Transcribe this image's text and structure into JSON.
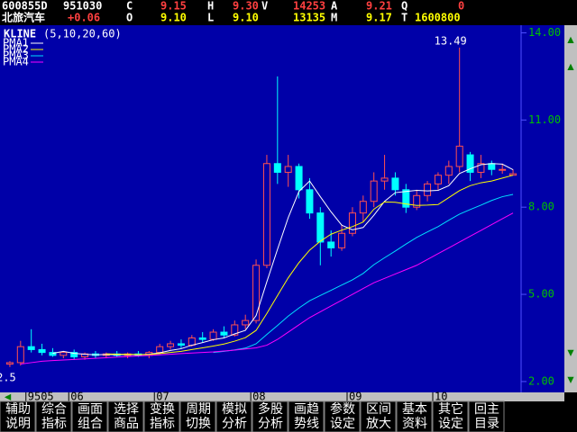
{
  "header": {
    "row1": [
      "600855D",
      "951030",
      "C",
      "9.15",
      "H",
      "9.30",
      "V",
      "14253",
      "A",
      "9.21",
      "Q",
      "0"
    ],
    "row2": [
      "北旅汽车",
      "+0.06",
      "O",
      "9.10",
      "L",
      "9.10",
      "13135",
      "M",
      "9.17",
      "T",
      "1600800"
    ]
  },
  "chart_data": {
    "type": "candlestick",
    "title": "KLINE",
    "subtitle": "(5,10,20,60)",
    "up_color": "#ff5050",
    "down_color": "#00ffff",
    "categories": [
      null,
      null,
      "9505",
      null,
      null,
      null,
      "06",
      null,
      null,
      null,
      null,
      null,
      null,
      null,
      "07",
      null,
      null,
      null,
      null,
      null,
      null,
      null,
      null,
      "08",
      null,
      null,
      null,
      null,
      null,
      null,
      null,
      null,
      "09",
      null,
      null,
      null,
      null,
      null,
      null,
      null,
      "10",
      null,
      null,
      null,
      null,
      null,
      null,
      null
    ],
    "open": [
      2.6,
      2.65,
      3.2,
      3.1,
      3.0,
      2.9,
      3.0,
      2.85,
      2.95,
      2.9,
      2.95,
      2.9,
      2.95,
      2.9,
      3.0,
      3.2,
      3.3,
      3.25,
      3.5,
      3.45,
      3.7,
      3.6,
      3.95,
      4.1,
      6.0,
      9.5,
      9.2,
      9.4,
      8.6,
      7.8,
      6.8,
      6.6,
      7.1,
      7.8,
      8.2,
      8.9,
      9.0,
      8.6,
      8.0,
      8.4,
      8.8,
      9.1,
      9.4,
      9.8,
      9.2,
      9.5,
      9.3,
      9.1
    ],
    "high": [
      2.7,
      3.4,
      3.8,
      3.3,
      3.15,
      3.05,
      3.1,
      3.0,
      3.05,
      3.0,
      3.05,
      3.0,
      3.05,
      3.05,
      3.3,
      3.4,
      3.45,
      3.6,
      3.7,
      3.8,
      3.9,
      4.1,
      4.3,
      6.2,
      9.8,
      12.5,
      9.8,
      9.5,
      9.0,
      8.0,
      7.2,
      7.4,
      8.0,
      8.4,
      9.2,
      9.8,
      9.2,
      8.8,
      8.6,
      8.9,
      9.2,
      9.6,
      13.49,
      9.9,
      9.8,
      9.6,
      9.5,
      9.3
    ],
    "low": [
      2.5,
      2.55,
      3.0,
      2.9,
      2.85,
      2.8,
      2.75,
      2.75,
      2.8,
      2.8,
      2.85,
      2.8,
      2.85,
      2.8,
      2.95,
      3.1,
      3.15,
      3.2,
      3.35,
      3.4,
      3.5,
      3.55,
      3.8,
      4.0,
      5.9,
      8.8,
      8.7,
      8.3,
      7.6,
      6.0,
      6.3,
      6.5,
      7.0,
      7.5,
      8.0,
      8.6,
      8.4,
      7.8,
      7.9,
      8.2,
      8.6,
      8.8,
      9.2,
      8.9,
      9.0,
      9.1,
      9.15,
      9.1
    ],
    "close": [
      2.65,
      3.2,
      3.1,
      3.0,
      2.9,
      3.0,
      2.85,
      2.95,
      2.9,
      2.95,
      2.9,
      2.95,
      2.9,
      3.0,
      3.2,
      3.3,
      3.25,
      3.5,
      3.45,
      3.7,
      3.6,
      3.95,
      4.1,
      6.0,
      9.5,
      9.2,
      9.4,
      8.6,
      7.8,
      6.8,
      6.6,
      7.1,
      7.8,
      8.2,
      8.9,
      9.0,
      8.6,
      8.0,
      8.4,
      8.8,
      9.1,
      9.4,
      10.1,
      9.2,
      9.5,
      9.3,
      9.3,
      9.15
    ],
    "series": [
      {
        "name": "PMA1",
        "color": "#ffffff",
        "values": [
          null,
          null,
          null,
          null,
          2.97,
          3.04,
          2.97,
          2.94,
          2.92,
          2.93,
          2.92,
          2.93,
          2.92,
          2.94,
          2.99,
          3.07,
          3.13,
          3.25,
          3.34,
          3.44,
          3.5,
          3.64,
          3.76,
          4.27,
          5.43,
          6.55,
          7.64,
          8.54,
          8.9,
          8.36,
          7.84,
          7.38,
          7.22,
          7.3,
          7.72,
          8.2,
          8.5,
          8.54,
          8.58,
          8.56,
          8.58,
          8.74,
          9.16,
          9.32,
          9.46,
          9.5,
          9.48,
          9.29
        ]
      },
      {
        "name": "PMA2",
        "color": "#ffff00",
        "values": [
          null,
          null,
          null,
          null,
          null,
          null,
          null,
          null,
          null,
          2.95,
          2.94,
          2.94,
          2.93,
          2.93,
          2.96,
          3.0,
          3.04,
          3.1,
          3.16,
          3.22,
          3.29,
          3.39,
          3.51,
          3.76,
          4.34,
          4.96,
          5.57,
          6.09,
          6.52,
          6.83,
          7.07,
          7.21,
          7.33,
          7.49,
          7.93,
          8.18,
          8.17,
          8.11,
          8.06,
          8.07,
          8.09,
          8.33,
          8.57,
          8.74,
          8.84,
          8.9,
          9.0,
          9.1
        ]
      },
      {
        "name": "PMA3",
        "color": "#00e0ff",
        "values": [
          null,
          null,
          null,
          null,
          null,
          null,
          null,
          null,
          null,
          null,
          null,
          null,
          null,
          null,
          null,
          null,
          null,
          null,
          null,
          3.0,
          3.04,
          3.09,
          3.15,
          3.3,
          3.62,
          3.93,
          4.25,
          4.53,
          4.78,
          4.96,
          5.14,
          5.32,
          5.5,
          5.72,
          6.02,
          6.26,
          6.49,
          6.73,
          6.96,
          7.15,
          7.33,
          7.55,
          7.76,
          7.92,
          8.07,
          8.23,
          8.36,
          8.44
        ]
      },
      {
        "name": "PMA4",
        "color": "#ff00ff",
        "values": [
          null,
          2.6,
          2.65,
          2.7,
          2.72,
          2.74,
          2.76,
          2.78,
          2.8,
          2.82,
          2.84,
          2.86,
          2.88,
          2.9,
          2.92,
          2.94,
          2.96,
          2.98,
          3.0,
          3.02,
          3.05,
          3.08,
          3.12,
          3.16,
          3.25,
          3.45,
          3.7,
          3.95,
          4.2,
          4.4,
          4.6,
          4.8,
          5.0,
          5.2,
          5.4,
          5.55,
          5.7,
          5.85,
          6.0,
          6.2,
          6.4,
          6.6,
          6.8,
          7.0,
          7.2,
          7.4,
          7.6,
          7.8
        ]
      }
    ],
    "ylim": [
      1.75,
      14.2
    ],
    "yticks": [
      {
        "value": 2,
        "label": "2.00"
      },
      {
        "value": 5,
        "label": "5.00"
      },
      {
        "value": 8,
        "label": "8.00"
      },
      {
        "value": 11,
        "label": "11.00"
      },
      {
        "value": 14,
        "label": "14.00"
      }
    ]
  },
  "buttons": [
    [
      "辅助",
      "说明"
    ],
    [
      "综合",
      "指标"
    ],
    [
      "画面",
      "组合"
    ],
    [
      "选择",
      "商品"
    ],
    [
      "变换",
      "指标"
    ],
    [
      "周期",
      "切换"
    ],
    [
      "模拟",
      "分析"
    ],
    [
      "多股",
      "分析"
    ],
    [
      "画趋",
      "势线"
    ],
    [
      "参数",
      "设定"
    ],
    [
      "区间",
      "放大"
    ],
    [
      "基本",
      "资料"
    ],
    [
      "其它",
      "设定"
    ],
    [
      "回主",
      "目录"
    ]
  ]
}
